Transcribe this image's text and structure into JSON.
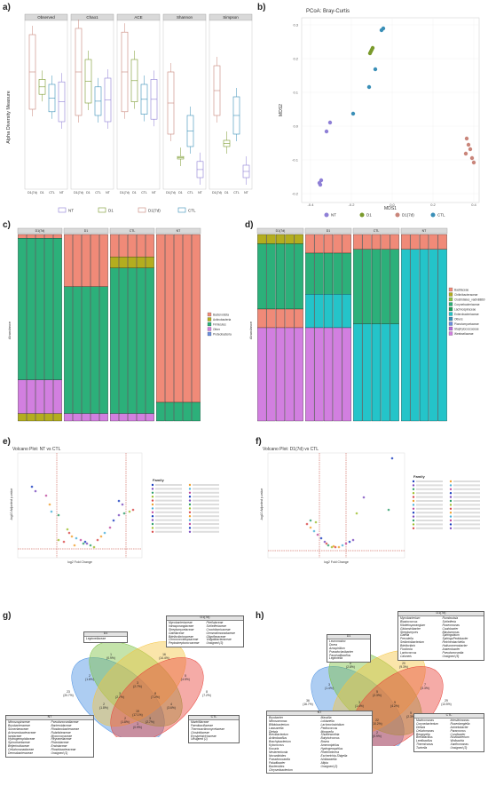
{
  "panels": {
    "a": {
      "label": "a)",
      "ylabel": "Alpha Diversity Measure",
      "facets": [
        "Observed",
        "Chao1",
        "ACE",
        "Shannon",
        "Simpson"
      ],
      "groups": [
        "D1(7d)",
        "D1",
        "CTL",
        "NT"
      ],
      "legend": [
        "NT",
        "D1",
        "D1(7d)",
        "CTL"
      ]
    },
    "b": {
      "label": "b)",
      "title": "PCoA: Bray-Curtis",
      "xlabel": "MDS1",
      "ylabel": "MDS2",
      "legend": [
        "NT",
        "D1",
        "D1(7d)",
        "CTL"
      ],
      "yticks": [
        "0.3",
        "0.2",
        "0.1",
        "0.0",
        "-0.1",
        "-0.2"
      ],
      "xticks": [
        "-0.4",
        "-0.2",
        "0.0",
        "0.2",
        "0.4"
      ]
    },
    "c": {
      "label": "c)",
      "ylabel": "Abundance",
      "facets": [
        "D1(7d)",
        "D1",
        "CTL",
        "NT"
      ],
      "legend": [
        "Bacteroidota",
        "Actinobacteria",
        "Firmicutes",
        "Other",
        "Proteobacteria"
      ]
    },
    "d": {
      "label": "d)",
      "ylabel": "Abundance",
      "facets": [
        "D1(7d)",
        "D1",
        "CTL",
        "NT"
      ],
      "legend": [
        "Bacillaceae",
        "Chitinibacteraceae",
        "Clostridiales_vadinBB60",
        "Corynebacteriaceae",
        "Lachnospiraceae",
        "Enterobacteriaceae",
        "Others",
        "Planctomycetaceae",
        "Staphylococcaceae",
        "Weeksellaceae"
      ]
    },
    "e": {
      "label": "e)",
      "title": "Volcano Plot: NT vs CTL",
      "xlabel": "log2 Fold Change",
      "ylabel": "-log10 Adjusted p-value",
      "legend_title": "Family"
    },
    "f": {
      "label": "f)",
      "title": "Volcano Plot: D1(7d) vs CTL",
      "xlabel": "log2 Fold Change",
      "ylabel": "-log10 Adjusted p-value",
      "legend_title": "Family"
    },
    "g": {
      "label": "g)",
      "sets": [
        "NT",
        "D1",
        "D1(7d)",
        "CTL"
      ],
      "counts": [
        "23 (20.7%)",
        "1 (0.9%)",
        "16 (14.4%)",
        "8 (7.2%)",
        "2 (1.8%)",
        "3 (2.7%)",
        "5 (4.5%)",
        "2 (1.8%)",
        "19 (17.1%)",
        "4 (3.6%)",
        "3 (2.7%)",
        "8 (7.2%)",
        "1 (0.9%)",
        "2 (1.8%)",
        "3 (2.7%)"
      ],
      "box_d1": [
        "Legionellaceae"
      ],
      "box_d17": [
        "Mycobacteriaceae",
        "Intrasporangiaceae",
        "Streptomycetaceae",
        "Gaiellaceae",
        "Bdellovibrionaceae",
        "Chroococcidiopsaceae",
        "Peptostreptococcaceae",
        "Pirellulaceae",
        "Schleiferiaceae",
        "Crocinitomicaceae",
        "Gemmatimonadaceae",
        "Oligoflexaceae",
        "Vulgatibacteraceae",
        "Unsigned (3)"
      ],
      "box_nt": [
        "Nitrosospiraceae",
        "Bryobacteraceae",
        "Sumerlaeaceae",
        "Achromobacteraceae",
        "Iamiaceae",
        "Hydrogenophilaceae",
        "Spirochaetaceae",
        "Beijerinckiaceae",
        "Cellulomonadaceae",
        "Dermabacteraceae",
        "Pseudonocardiaceae",
        "Bacteroidaceae",
        "Rhodanobacteraceae",
        "Rubritaleaceae",
        "Myxococcaceae",
        "Reyranellaceae",
        "Rhizobiaceae",
        "Erwiniaceae",
        "Rhodobacteraceae",
        "Unsigned (1)"
      ],
      "box_ctl": [
        "Marinifilaceae",
        "Paenibacillaceae",
        "Thermoactinomycetaceae",
        "Clostridiaceae",
        "Erysipelotrichaceae",
        "Unsigned (1)"
      ]
    },
    "h": {
      "label": "h)",
      "sets": [
        "NT",
        "D1",
        "D1(7d)",
        "CTL"
      ],
      "counts": [
        "36 (16.7%)",
        "6 (2.8%)",
        "20 (9.3%)",
        "29 (13.5%)",
        "3 (1.4%)",
        "5 (2.3%)",
        "7 (3.3%)",
        "9 (4.2%)",
        "22 (10.2%)",
        "5 (2.3%)",
        "3 (1.4%)",
        "9 (4.2%)",
        "2 (0.9%)",
        "4 (1.9%)"
      ],
      "box_d1": [
        "Leuconostoc",
        "Dorea",
        "Azospirillum",
        "Pseudoclavibacter",
        "Paucisalibacillus",
        "Legionella"
      ],
      "box_d17": [
        "Mycobacterium",
        "Blastococcus",
        "Kibdelosporangium",
        "Glutamicibacter",
        "Streptomyces",
        "Gaiella",
        "Prevotella",
        "Sediminibacterium",
        "Bdellovibrio",
        "Fluviicola",
        "Lactococcus",
        "Caloneis",
        "Romboutsia",
        "Schleiferia",
        "Roseomonas",
        "Caulobacter",
        "Blastomonas",
        "Sphingobium",
        "SphingoPedobacter",
        "Reichenbachiella",
        "Haliscomenobacter",
        "Anaerobacter",
        "Pseudonocardia",
        "Unsigned (5)"
      ],
      "box_nt": [
        "Bryobacter",
        "Nitrosomonas",
        "Bifidobacterium",
        "Lawsonella",
        "Dietzia",
        "Brevibacterium",
        "Actinobacillus",
        "Brachybacterium",
        "Kytococcus",
        "Kocuria",
        "Nesterenkonia",
        "Nocardioides",
        "Pseudonocardia",
        "Paludibacter",
        "Bacteroides",
        "Chryseobacterium",
        "Massilia",
        "Loktanella",
        "Lachnoclostridium",
        "Pediococcus",
        "Moraxella",
        "Shuttleworthia",
        "Butyricicoccus",
        "Bosea",
        "Ammoniphilus",
        "Hydrogenophilus",
        "Rheinheimera",
        "Escherichia-Shigella",
        "Ishikawaella",
        "Afipia",
        "Unsigned (2)"
      ],
      "box_ctl": [
        "Marinomonas",
        "Corynebacterium",
        "Dietzia",
        "Cellulomonas",
        "Bergeyella",
        "Brevibacillus",
        "Lentibacillus",
        "Thermicanus",
        "Turicella",
        "Intestinimonas",
        "Rosenbergiella",
        "Acinetobacter",
        "Paracoccus",
        "Curvibacter",
        "Novibacterium",
        "Wolbachia",
        "Xanthomonas",
        "Unsigned (3)"
      ]
    }
  },
  "colors": {
    "NT": "#8e7fd6",
    "D1": "#7a9a2c",
    "D1_7d": "#c9857a",
    "CTL": "#3a8fb7",
    "bact_salmon": "#f08a78",
    "bact_green": "#2cb07a",
    "bact_pink": "#d27fe0",
    "bact_olive": "#b3ad1f",
    "bact_cyan": "#24c4c9"
  }
}
